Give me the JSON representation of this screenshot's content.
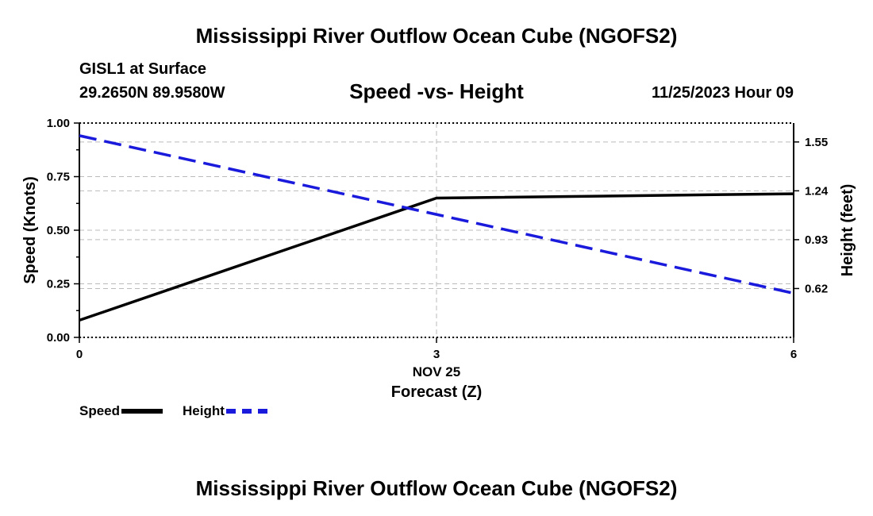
{
  "header": {
    "title": "Mississippi River Outflow Ocean Cube (NGOFS2)",
    "station": "GISL1 at Surface",
    "coordinates": "29.2650N  89.9580W",
    "subtitle": "Speed -vs- Height",
    "datetime": "11/25/2023 Hour 09"
  },
  "footer": {
    "title": "Mississippi River Outflow Ocean Cube (NGOFS2)"
  },
  "legend": {
    "speed_label": "Speed",
    "height_label": "Height"
  },
  "chart_data": {
    "type": "line",
    "title": "Speed -vs- Height",
    "xlabel": "Forecast (Z)",
    "x_date_label": "NOV 25",
    "ylabel": "Speed (Knots)",
    "y2label": "Height (feet)",
    "xlim": [
      0,
      6
    ],
    "ylim": [
      0,
      1
    ],
    "y2lim": [
      0.31,
      1.67
    ],
    "x_ticks": [
      "0",
      "3",
      "6"
    ],
    "y_ticks": [
      "0.00",
      "0.25",
      "0.50",
      "0.75",
      "1.00"
    ],
    "y2_ticks": [
      "0.62",
      "0.93",
      "1.24",
      "1.55"
    ],
    "grid": true,
    "legend_position": "bottom-left",
    "series": [
      {
        "name": "Speed",
        "axis": "left",
        "color": "#000000",
        "style": "solid",
        "x": [
          0,
          3,
          6
        ],
        "values": [
          0.08,
          0.65,
          0.67
        ]
      },
      {
        "name": "Height",
        "axis": "right",
        "color": "#1a1adc",
        "style": "dashed",
        "x": [
          0,
          6
        ],
        "values": [
          1.59,
          0.59
        ]
      }
    ]
  }
}
